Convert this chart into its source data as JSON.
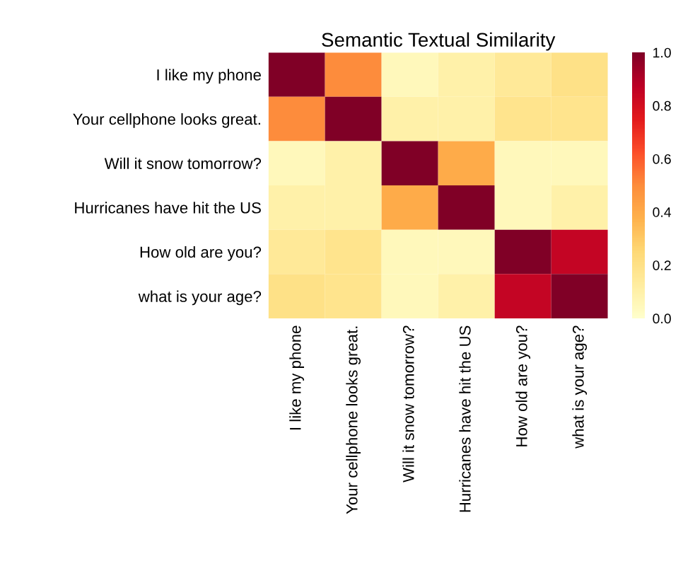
{
  "chart_data": {
    "type": "heatmap",
    "title": "Semantic Textual Similarity",
    "categories": [
      "I like my phone",
      "Your cellphone looks great.",
      "Will it snow tomorrow?",
      "Hurricanes have hit the US",
      "How old are you?",
      "what is your age?"
    ],
    "y_categories": [
      "I like my phone",
      "Your cellphone looks great.",
      "Will it snow tomorrow?",
      "Hurricanes have hit the US",
      "How old are you?",
      "what is your age?"
    ],
    "cells": [
      [
        1.0,
        0.5,
        0.05,
        0.1,
        0.15,
        0.2
      ],
      [
        0.5,
        1.0,
        0.1,
        0.1,
        0.18,
        0.18
      ],
      [
        0.05,
        0.1,
        1.0,
        0.4,
        0.05,
        0.05
      ],
      [
        0.1,
        0.1,
        0.4,
        1.0,
        0.05,
        0.1
      ],
      [
        0.15,
        0.18,
        0.05,
        0.05,
        1.0,
        0.85
      ],
      [
        0.2,
        0.18,
        0.05,
        0.1,
        0.85,
        1.0
      ]
    ],
    "clim": [
      0,
      1
    ],
    "cticks": [
      {
        "value": 0,
        "label": "0.0"
      },
      {
        "value": 0.2,
        "label": "0.2"
      },
      {
        "value": 0.4,
        "label": "0.4"
      },
      {
        "value": 0.6,
        "label": "0.6"
      },
      {
        "value": 0.8,
        "label": "0.8"
      },
      {
        "value": 1,
        "label": "1.0"
      }
    ]
  }
}
